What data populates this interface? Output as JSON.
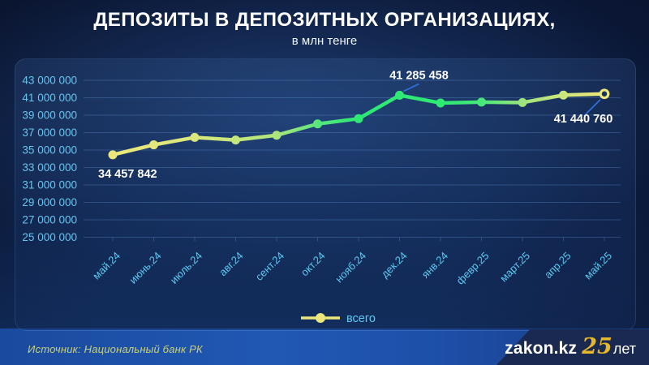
{
  "header": {
    "title": "ДЕПОЗИТЫ В ДЕПОЗИТНЫХ ОРГАНИЗАЦИЯХ,",
    "subtitle": "в млн тенге"
  },
  "legend": {
    "label": "всего"
  },
  "footer": {
    "source": "Источник: Национальный банк РК",
    "logo": {
      "site": "zakon.kz",
      "number": "25",
      "suffix": "лет"
    }
  },
  "colors": {
    "axis_label": "#68c4ee",
    "x_label": "#5ecaf2",
    "gridline": "rgba(120,175,245,0.26)",
    "annotation_text": "#ffffff",
    "leader_line": "#2f6fd6",
    "legend_yellow": "#ece77b",
    "line_green": "#2ee973",
    "marker_ring_fill": "#17315f",
    "source_olive": "#c9d178",
    "logo_gold": "#e7b629"
  },
  "chart_data": {
    "type": "line",
    "title": "ДЕПОЗИТЫ В ДЕПОЗИТНЫХ ОРГАНИЗАЦИЯХ, в млн тенге",
    "x": [
      "май.24",
      "июнь.24",
      "июль.24",
      "авг.24",
      "сент.24",
      "окт.24",
      "нояб.24",
      "дек.24",
      "янв.24",
      "февр.25",
      "март.25",
      "апр.25",
      "май.25"
    ],
    "series": [
      {
        "name": "всего",
        "values": [
          34457842,
          35600000,
          36450000,
          36150000,
          36700000,
          38000000,
          38600000,
          41285458,
          40400000,
          40500000,
          40450000,
          41300000,
          41440760
        ]
      }
    ],
    "ylim": [
      25000000,
      43000000
    ],
    "y_ticks": [
      {
        "value": 43000000,
        "label": "43 000 000"
      },
      {
        "value": 41000000,
        "label": "41 000 000"
      },
      {
        "value": 39000000,
        "label": "39 000 000"
      },
      {
        "value": 37000000,
        "label": "37 000 000"
      },
      {
        "value": 35000000,
        "label": "35 000 000"
      },
      {
        "value": 33000000,
        "label": "33 000 000"
      },
      {
        "value": 31000000,
        "label": "31 000 000"
      },
      {
        "value": 29000000,
        "label": "29 000 000"
      },
      {
        "value": 27000000,
        "label": "27 000 000"
      },
      {
        "value": 25000000,
        "label": "25 000 000"
      }
    ],
    "grid": true,
    "legend_position": "bottom-center",
    "annotations": [
      {
        "index": 0,
        "text": "34 457 842",
        "position": "below-start"
      },
      {
        "index": 7,
        "text": "41 285 458",
        "position": "above-right"
      },
      {
        "index": 12,
        "text": "41 440 760",
        "position": "below-left"
      }
    ],
    "line_gradient": [
      [
        0,
        "#ece77b"
      ],
      [
        0.17,
        "#d9e77c"
      ],
      [
        0.33,
        "#b0e57c"
      ],
      [
        0.42,
        "#55e67c"
      ],
      [
        0.5,
        "#2ee973"
      ],
      [
        0.67,
        "#2ee973"
      ],
      [
        0.75,
        "#45e878"
      ],
      [
        0.83,
        "#9ce47d"
      ],
      [
        0.92,
        "#cfe67b"
      ],
      [
        1,
        "#eee87c"
      ]
    ]
  }
}
